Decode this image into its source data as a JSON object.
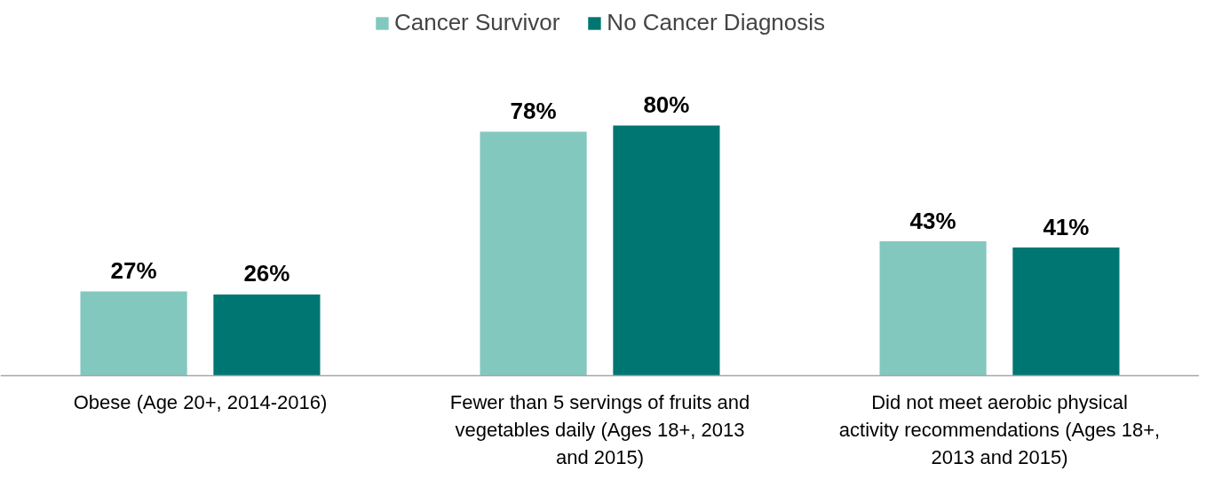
{
  "chart_data": {
    "type": "bar",
    "categories": [
      "Obese (Age 20+, 2014-2016)",
      "Fewer than 5 servings of fruits and vegetables daily (Ages 18+, 2013 and 2015)",
      "Did not meet aerobic physical activity recommendations (Ages 18+, 2013 and 2015)"
    ],
    "series": [
      {
        "name": "Cancer Survivor",
        "color": "#82c8be",
        "values": [
          27,
          78,
          43
        ],
        "value_labels": [
          "27%",
          "78%",
          "43%"
        ]
      },
      {
        "name": "No Cancer Diagnosis",
        "color": "#007672",
        "values": [
          26,
          80,
          41
        ],
        "value_labels": [
          "26%",
          "80%",
          "41%"
        ]
      }
    ],
    "legend": "top",
    "grid": false
  }
}
